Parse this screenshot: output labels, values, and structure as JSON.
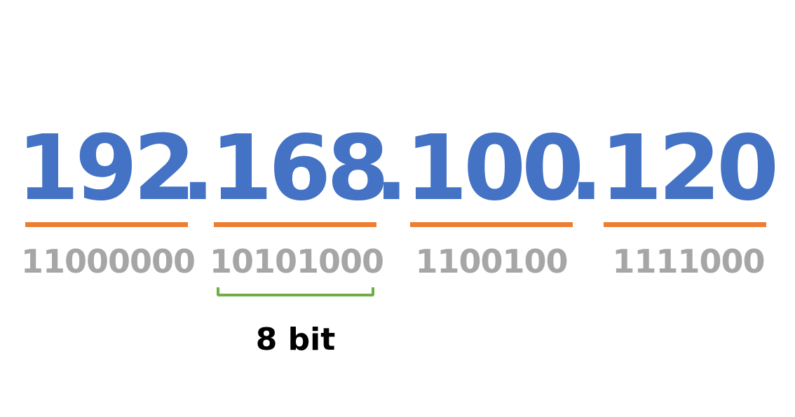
{
  "ip_address": {
    "octets": [
      "192",
      "168",
      "100",
      "120"
    ],
    "separator": "."
  },
  "binary": [
    "11000000",
    "10101000",
    "1100100",
    "1111000"
  ],
  "bracket_label": "8 bit",
  "colors": {
    "octet_text": "#4472c4",
    "underline": "#ed7d31",
    "binary_text": "#a6a6a6",
    "bracket": "#70ad47",
    "label_text": "#000000"
  }
}
